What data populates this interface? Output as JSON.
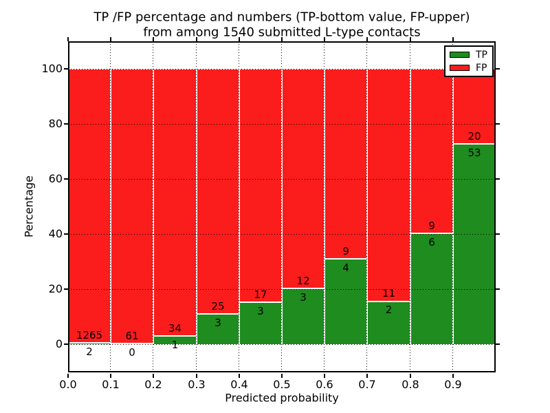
{
  "title": {
    "line1": "TP /FP percentage and numbers (TP-bottom value, FP-upper)",
    "line2": "from among 1540 submitted L-type contacts"
  },
  "chart_data": {
    "type": "bar",
    "stacked": true,
    "normalized_to_percent": true,
    "title": "TP /FP percentage and numbers (TP-bottom value, FP-upper)\nfrom among 1540 submitted L-type contacts",
    "xlabel": "Predicted probability",
    "ylabel": "Percentage",
    "total_contacts": 1540,
    "bins": [
      "0.0-0.1",
      "0.1-0.2",
      "0.2-0.3",
      "0.3-0.4",
      "0.4-0.5",
      "0.5-0.6",
      "0.6-0.7",
      "0.7-0.8",
      "0.8-0.9",
      "0.9-1.0"
    ],
    "bin_start": [
      0.0,
      0.1,
      0.2,
      0.3,
      0.4,
      0.5,
      0.6,
      0.7,
      0.8,
      0.9
    ],
    "bin_width": 0.1,
    "series": [
      {
        "name": "TP",
        "color": "#1e8c1e",
        "counts": [
          2,
          0,
          1,
          3,
          3,
          3,
          4,
          2,
          6,
          53
        ],
        "percent": [
          0.16,
          0.0,
          2.86,
          10.71,
          15.0,
          20.0,
          30.77,
          15.38,
          40.0,
          72.6
        ]
      },
      {
        "name": "FP",
        "color": "#fb1c1c",
        "counts": [
          1265,
          61,
          34,
          25,
          17,
          12,
          9,
          11,
          9,
          20
        ],
        "percent": [
          99.84,
          100.0,
          97.14,
          89.29,
          85.0,
          80.0,
          69.23,
          84.62,
          60.0,
          27.4
        ]
      }
    ],
    "x_ticks": [
      "0.0",
      "0.1",
      "0.2",
      "0.3",
      "0.4",
      "0.5",
      "0.6",
      "0.7",
      "0.8",
      "0.9"
    ],
    "x_tick_values": [
      0.0,
      0.1,
      0.2,
      0.3,
      0.4,
      0.5,
      0.6,
      0.7,
      0.8,
      0.9
    ],
    "y_ticks": [
      0,
      20,
      40,
      60,
      80,
      100
    ],
    "xlim": [
      0.0,
      1.0
    ],
    "ylim": [
      -10.25,
      110.25
    ],
    "grid": "dotted",
    "grid_color": "#000000",
    "bar_edge_color": "#ffffff",
    "frame_color": "#000000",
    "legend_position": "upper right",
    "annotation_note": "FP count above TP/FP boundary, TP count below boundary"
  }
}
